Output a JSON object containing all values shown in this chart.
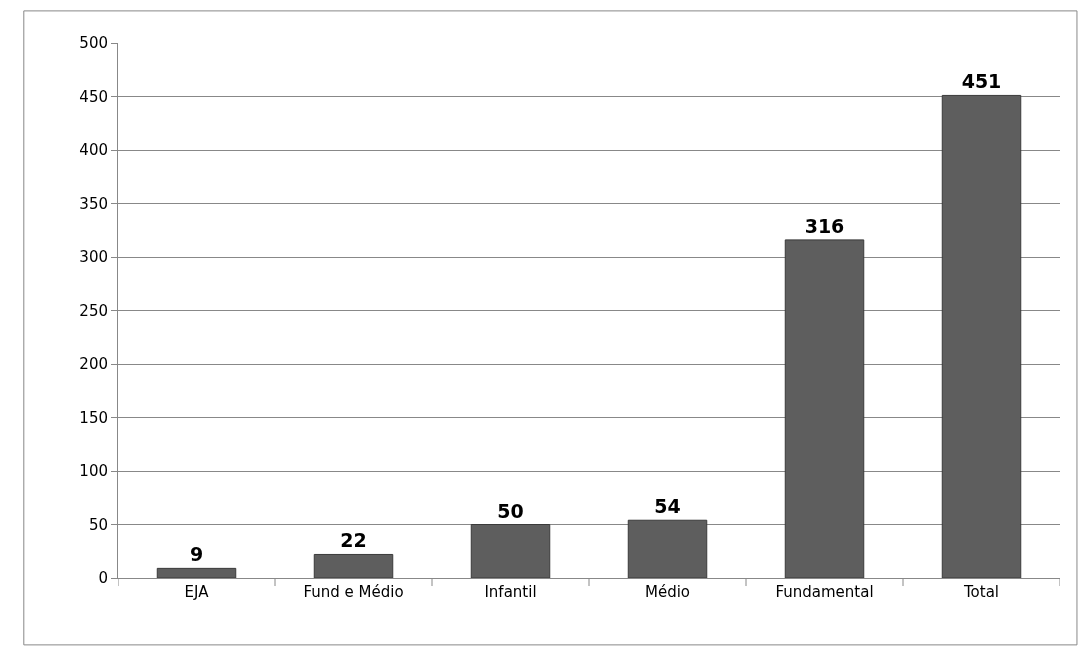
{
  "chart_data": {
    "type": "bar",
    "categories": [
      "EJA",
      "Fund e Médio",
      "Infantil",
      "Médio",
      "Fundamental",
      "Total"
    ],
    "values": [
      9,
      22,
      50,
      54,
      316,
      451
    ],
    "color": "#5e5e5e",
    "ylim": [
      0,
      500
    ],
    "yticks": [
      0,
      50,
      100,
      150,
      200,
      250,
      300,
      350,
      400,
      450,
      500
    ],
    "grid": "y",
    "data_labels": true
  }
}
